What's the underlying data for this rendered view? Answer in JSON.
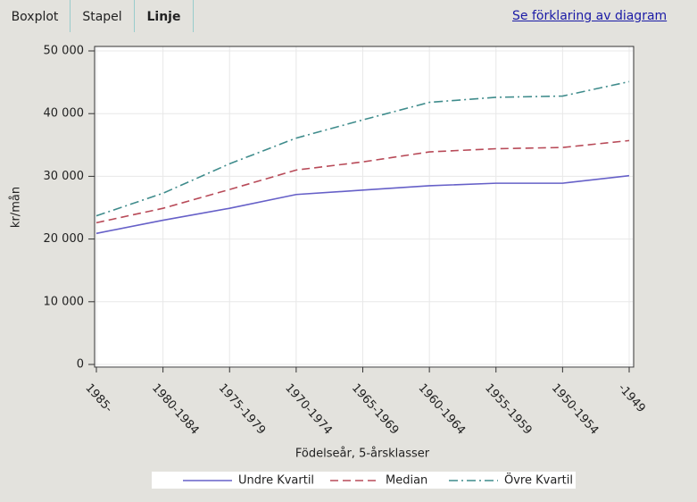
{
  "tabs": [
    "Boxplot",
    "Stapel",
    "Linje"
  ],
  "link": "Se förklaring av diagram",
  "chart_data": {
    "type": "line",
    "x_label": "Födelseår, 5-årsklasser",
    "y_label": "kr/mån",
    "categories": [
      "1985-",
      "1980-1984",
      "1975-1979",
      "1970-1974",
      "1965-1969",
      "1960-1964",
      "1955-1959",
      "1950-1954",
      "-1949"
    ],
    "series": [
      {
        "name": "Undre Kvartil",
        "color": "#6660c8",
        "dash": "solid",
        "values": [
          20900,
          23000,
          24900,
          27100,
          27800,
          28500,
          28900,
          28900,
          30100
        ]
      },
      {
        "name": "Median",
        "color": "#b84a58",
        "dash": "dashed",
        "values": [
          22600,
          24900,
          27900,
          31000,
          32300,
          33900,
          34400,
          34600,
          35700
        ]
      },
      {
        "name": "Övre Kvartil",
        "color": "#3f8c8c",
        "dash": "dashdot",
        "values": [
          23700,
          27300,
          32000,
          36100,
          39000,
          41800,
          42600,
          42800,
          45100
        ]
      }
    ],
    "ylim": [
      0,
      50000
    ],
    "yticks": [
      {
        "value": 0,
        "label": "0"
      },
      {
        "value": 10000,
        "label": "10 000"
      },
      {
        "value": 20000,
        "label": "20 000"
      },
      {
        "value": 30000,
        "label": "30 000"
      },
      {
        "value": 40000,
        "label": "40 000"
      },
      {
        "value": 50000,
        "label": "50 000"
      }
    ],
    "grid": true,
    "legend": "bottom"
  }
}
